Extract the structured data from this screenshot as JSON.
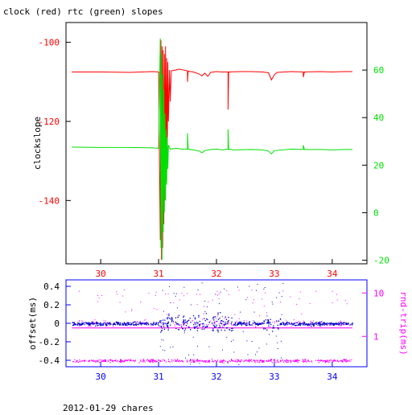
{
  "page": {
    "title": "clock (red) rtc (green) slopes",
    "footer": "2012-01-29 chares"
  },
  "colors": {
    "clock": "#ff0000",
    "rtc": "#00e000",
    "offset": "#0000cc",
    "rndtrip": "#ff00ff",
    "frame": "#000000",
    "bottom_axis": "#0000ff"
  },
  "chart_data": [
    {
      "type": "line",
      "title": "clock (red) rtc (green) slopes",
      "ylabel": "clockslope",
      "xlim": [
        29.4,
        34.6
      ],
      "ylim": [
        -156,
        -95
      ],
      "y2lim": [
        -21.5,
        80
      ],
      "x_ticks": [
        30,
        31,
        32,
        33,
        34
      ],
      "y_ticks": [
        -100,
        -120,
        -140
      ],
      "y2_ticks": [
        60,
        40,
        20,
        0,
        -20
      ],
      "grid": false,
      "series": [
        {
          "name": "clock",
          "axis": "left",
          "points": [
            [
              29.5,
              -107.5
            ],
            [
              30.0,
              -107.5
            ],
            [
              30.5,
              -107.6
            ],
            [
              30.9,
              -107.4
            ],
            [
              31.0,
              -107.5
            ],
            [
              31.03,
              -150
            ],
            [
              31.04,
              -99.5
            ],
            [
              31.05,
              -155
            ],
            [
              31.06,
              -101
            ],
            [
              31.07,
              -152
            ],
            [
              31.08,
              -102
            ],
            [
              31.09,
              -146
            ],
            [
              31.1,
              -103
            ],
            [
              31.11,
              -140
            ],
            [
              31.12,
              -101
            ],
            [
              31.13,
              -135
            ],
            [
              31.14,
              -104
            ],
            [
              31.15,
              -128
            ],
            [
              31.16,
              -105
            ],
            [
              31.17,
              -120
            ],
            [
              31.19,
              -107
            ],
            [
              31.2,
              -115
            ],
            [
              31.22,
              -107.2
            ],
            [
              31.3,
              -107.0
            ],
            [
              31.35,
              -106.8
            ],
            [
              31.5,
              -107.2
            ],
            [
              31.5,
              -110
            ],
            [
              31.51,
              -107.3
            ],
            [
              31.6,
              -107.5
            ],
            [
              31.7,
              -108.0
            ],
            [
              31.75,
              -108.5
            ],
            [
              31.8,
              -107.8
            ],
            [
              31.85,
              -108.6
            ],
            [
              31.9,
              -107.6
            ],
            [
              32.0,
              -107.4
            ],
            [
              32.1,
              -107.5
            ],
            [
              32.2,
              -107.5
            ],
            [
              32.2,
              -117
            ],
            [
              32.21,
              -107.5
            ],
            [
              32.4,
              -107.4
            ],
            [
              32.6,
              -107.4
            ],
            [
              32.8,
              -107.5
            ],
            [
              32.9,
              -107.7
            ],
            [
              32.95,
              -109.5
            ],
            [
              33.0,
              -108.2
            ],
            [
              33.05,
              -107.6
            ],
            [
              33.3,
              -107.4
            ],
            [
              33.5,
              -107.5
            ],
            [
              33.5,
              -108.8
            ],
            [
              33.52,
              -107.5
            ],
            [
              33.8,
              -107.4
            ],
            [
              34.0,
              -107.5
            ],
            [
              34.2,
              -107.4
            ],
            [
              34.35,
              -107.4
            ]
          ]
        },
        {
          "name": "rtc",
          "axis": "left",
          "points": [
            [
              29.5,
              -126.5
            ],
            [
              30.0,
              -126.6
            ],
            [
              30.5,
              -126.6
            ],
            [
              30.9,
              -126.7
            ],
            [
              31.0,
              -126.8
            ],
            [
              31.03,
              -99
            ],
            [
              31.04,
              -152
            ],
            [
              31.05,
              -103
            ],
            [
              31.06,
              -155
            ],
            [
              31.07,
              -108
            ],
            [
              31.08,
              -148
            ],
            [
              31.09,
              -112
            ],
            [
              31.1,
              -143
            ],
            [
              31.11,
              -118
            ],
            [
              31.12,
              -140
            ],
            [
              31.13,
              -122
            ],
            [
              31.14,
              -136
            ],
            [
              31.15,
              -124
            ],
            [
              31.16,
              -132
            ],
            [
              31.17,
              -126
            ],
            [
              31.2,
              -127
            ],
            [
              31.3,
              -126.8
            ],
            [
              31.4,
              -127.0
            ],
            [
              31.5,
              -127.0
            ],
            [
              31.5,
              -123
            ],
            [
              31.51,
              -127.0
            ],
            [
              31.6,
              -127.2
            ],
            [
              31.7,
              -127.5
            ],
            [
              31.75,
              -127.9
            ],
            [
              31.8,
              -127.4
            ],
            [
              31.9,
              -127.1
            ],
            [
              32.0,
              -127.0
            ],
            [
              32.1,
              -127.2
            ],
            [
              32.2,
              -127.0
            ],
            [
              32.2,
              -122
            ],
            [
              32.21,
              -127.0
            ],
            [
              32.3,
              -127.2
            ],
            [
              32.6,
              -127.1
            ],
            [
              32.8,
              -127.2
            ],
            [
              32.9,
              -127.5
            ],
            [
              32.95,
              -128.2
            ],
            [
              33.0,
              -127.4
            ],
            [
              33.3,
              -127.0
            ],
            [
              33.5,
              -127.1
            ],
            [
              33.5,
              -126.0
            ],
            [
              33.52,
              -127.1
            ],
            [
              33.8,
              -127.1
            ],
            [
              34.0,
              -127.2
            ],
            [
              34.2,
              -127.1
            ],
            [
              34.35,
              -127.1
            ]
          ]
        }
      ]
    },
    {
      "type": "scatter",
      "ylabel": "offset(ms)",
      "y2label": "rnd-trip(ms)",
      "xlim": [
        29.4,
        34.6
      ],
      "ylim": [
        -0.47,
        0.47
      ],
      "y2lim": [
        0.2,
        20
      ],
      "y2_scale": "log",
      "x_ticks": [
        30,
        31,
        32,
        33,
        34
      ],
      "y_ticks": [
        0.4,
        0.2,
        0,
        -0.2,
        -0.4
      ],
      "y2_ticks": [
        10,
        1
      ],
      "grid": false,
      "series": [
        {
          "name": "offset",
          "axis": "left",
          "baseline": -0.05,
          "center": 0.0,
          "noise": 0.03
        },
        {
          "name": "rnd-trip",
          "axis": "right",
          "baseline": 0.28,
          "upper": 2.0,
          "outlier_max": 12
        }
      ]
    }
  ]
}
